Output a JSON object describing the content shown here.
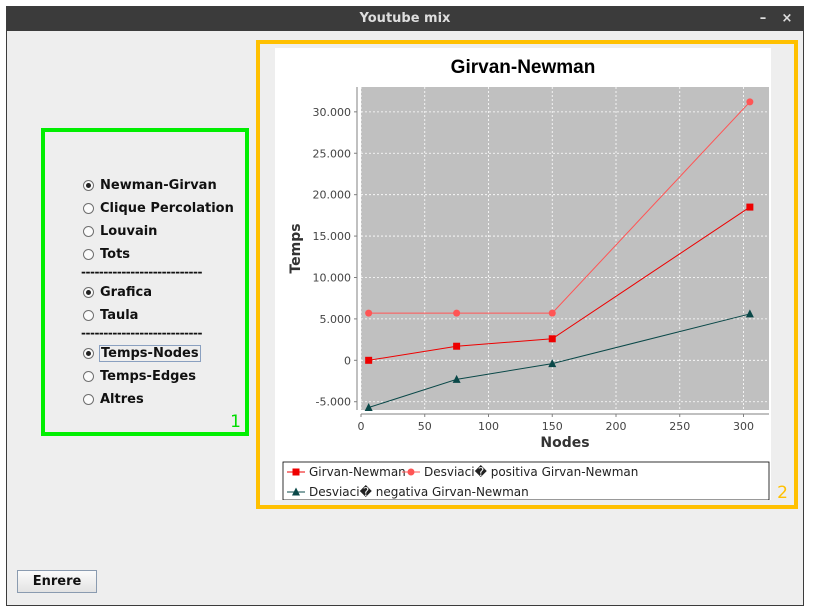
{
  "window": {
    "title": "Youtube mix",
    "minimize_label": "–",
    "close_label": "×"
  },
  "panel1": {
    "number": "1",
    "algorithms": [
      {
        "label": "Newman-Girvan",
        "checked": true
      },
      {
        "label": "Clique Percolation",
        "checked": false
      },
      {
        "label": "Louvain",
        "checked": false
      },
      {
        "label": "Tots",
        "checked": false
      }
    ],
    "separator": "---------------------------",
    "views": [
      {
        "label": "Grafica",
        "checked": true
      },
      {
        "label": "Taula",
        "checked": false
      }
    ],
    "metrics": [
      {
        "label": "Temps-Nodes",
        "checked": true
      },
      {
        "label": "Temps-Edges",
        "checked": false
      },
      {
        "label": "Altres",
        "checked": false
      }
    ]
  },
  "panel2": {
    "number": "2"
  },
  "button": {
    "label": "Enrere"
  },
  "colors": {
    "panel1_border": "#00ee00",
    "panel2_border": "#ffc000",
    "series_red": "#ee0000",
    "series_pink": "#ff5555",
    "series_teal": "#0a4848"
  },
  "chart_data": {
    "type": "line",
    "title": "Girvan-Newman",
    "xlabel": "Nodes",
    "ylabel": "Temps",
    "xlim": [
      0,
      320
    ],
    "ylim": [
      -6000,
      33000
    ],
    "x_ticks": [
      0,
      50,
      100,
      150,
      200,
      250,
      300
    ],
    "x_tick_labels": [
      "0",
      "50",
      "100",
      "150",
      "200",
      "250",
      "300"
    ],
    "y_ticks": [
      -5000,
      0,
      5000,
      10000,
      15000,
      20000,
      25000,
      30000
    ],
    "y_tick_labels": [
      "-5.000",
      "0",
      "5.000",
      "10.000",
      "15.000",
      "20.000",
      "25.000",
      "30.000"
    ],
    "grid": true,
    "legend_position": "bottom",
    "series": [
      {
        "name": "Girvan-Newman",
        "marker": "square",
        "color": "#ee0000",
        "x": [
          6,
          75,
          150,
          305
        ],
        "y": [
          0,
          1700,
          2600,
          18500
        ]
      },
      {
        "name": "Desviaci� positiva Girvan-Newman",
        "marker": "circle",
        "color": "#ff5555",
        "x": [
          6,
          75,
          150,
          305
        ],
        "y": [
          5700,
          5700,
          5700,
          31200
        ]
      },
      {
        "name": "Desviaci� negativa Girvan-Newman",
        "marker": "triangle",
        "color": "#0a4848",
        "x": [
          6,
          75,
          150,
          305
        ],
        "y": [
          -5700,
          -2300,
          -400,
          5600
        ]
      }
    ]
  }
}
